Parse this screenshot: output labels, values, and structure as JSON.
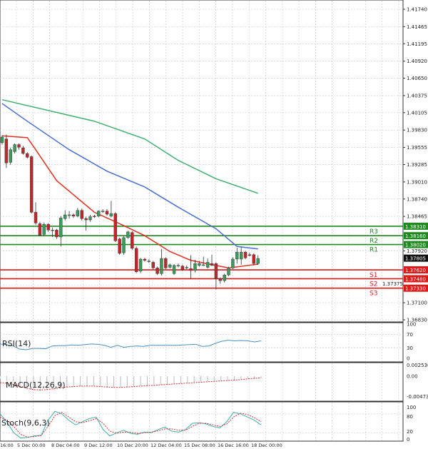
{
  "chart_data": [
    {
      "type": "candlestick",
      "pane": "price",
      "yticks": [
        "1.41740",
        "1.41465",
        "1.41195",
        "1.40920",
        "1.40650",
        "1.40375",
        "1.40105",
        "1.39830",
        "1.39555",
        "1.39285",
        "1.39010",
        "1.38740",
        "1.38465",
        "1.37920",
        "1.37375",
        "1.37100",
        "1.36830"
      ],
      "ylim": [
        1.3683,
        1.4174
      ],
      "grid": true,
      "current_price": "1.37805",
      "candles_ohlc": [
        [
          1.3963,
          1.3975,
          1.396,
          1.3972
        ],
        [
          1.3969,
          1.3976,
          1.3923,
          1.3931
        ],
        [
          1.3932,
          1.3955,
          1.3928,
          1.3952
        ],
        [
          1.3949,
          1.3962,
          1.3946,
          1.396
        ],
        [
          1.396,
          1.3962,
          1.3952,
          1.3956
        ],
        [
          1.3955,
          1.3958,
          1.3944,
          1.3946
        ],
        [
          1.3946,
          1.3948,
          1.3938,
          1.394
        ],
        [
          1.3941,
          1.3943,
          1.3851,
          1.3853
        ],
        [
          1.3853,
          1.3869,
          1.3833,
          1.3836
        ],
        [
          1.3835,
          1.3838,
          1.3815,
          1.3817
        ],
        [
          1.3818,
          1.3837,
          1.3815,
          1.3834
        ],
        [
          1.3834,
          1.3836,
          1.3822,
          1.3825
        ],
        [
          1.3825,
          1.3829,
          1.3814,
          1.3825
        ],
        [
          1.3825,
          1.3827,
          1.3811,
          1.3814
        ],
        [
          1.3814,
          1.3847,
          1.3799,
          1.3844
        ],
        [
          1.3843,
          1.3856,
          1.384,
          1.3849
        ],
        [
          1.3849,
          1.3855,
          1.3843,
          1.3849
        ],
        [
          1.3849,
          1.3851,
          1.3844,
          1.3847
        ],
        [
          1.3847,
          1.386,
          1.3845,
          1.3856
        ],
        [
          1.3856,
          1.3859,
          1.384,
          1.3843
        ],
        [
          1.3843,
          1.3846,
          1.3824,
          1.3841
        ],
        [
          1.3841,
          1.3849,
          1.3838,
          1.3846
        ],
        [
          1.3847,
          1.3849,
          1.3844,
          1.3846
        ],
        [
          1.3847,
          1.3856,
          1.3845,
          1.3855
        ],
        [
          1.3855,
          1.3858,
          1.3852,
          1.3855
        ],
        [
          1.3855,
          1.3858,
          1.3848,
          1.385
        ],
        [
          1.3847,
          1.3871,
          1.3845,
          1.3851
        ],
        [
          1.3851,
          1.3853,
          1.3806,
          1.3808
        ],
        [
          1.3811,
          1.3813,
          1.3786,
          1.3788
        ],
        [
          1.3789,
          1.3815,
          1.3786,
          1.3813
        ],
        [
          1.3813,
          1.3824,
          1.3811,
          1.3822
        ],
        [
          1.3821,
          1.3823,
          1.3794,
          1.3796
        ],
        [
          1.3796,
          1.3799,
          1.3757,
          1.3759
        ],
        [
          1.376,
          1.3781,
          1.3757,
          1.3779
        ],
        [
          1.3779,
          1.3781,
          1.3775,
          1.3777
        ],
        [
          1.3776,
          1.3779,
          1.3773,
          1.3776
        ],
        [
          1.3774,
          1.3776,
          1.3763,
          1.3765
        ],
        [
          1.3765,
          1.3767,
          1.3754,
          1.3756
        ],
        [
          1.3756,
          1.3795,
          1.3753,
          1.378
        ],
        [
          1.378,
          1.3782,
          1.3763,
          1.3765
        ],
        [
          1.3766,
          1.3772,
          1.3764,
          1.377
        ],
        [
          1.3756,
          1.3771,
          1.3754,
          1.3769
        ],
        [
          1.3769,
          1.3772,
          1.3766,
          1.3769
        ],
        [
          1.3768,
          1.377,
          1.376,
          1.3762
        ],
        [
          1.3766,
          1.3769,
          1.3763,
          1.3766
        ],
        [
          1.3764,
          1.3785,
          1.3748,
          1.3761
        ],
        [
          1.3761,
          1.3778,
          1.3758,
          1.3772
        ],
        [
          1.3769,
          1.3776,
          1.3767,
          1.3772
        ],
        [
          1.377,
          1.3783,
          1.3768,
          1.377
        ],
        [
          1.3766,
          1.378,
          1.3764,
          1.3774
        ],
        [
          1.3772,
          1.3786,
          1.3768,
          1.3769
        ],
        [
          1.3772,
          1.3774,
          1.3731,
          1.3748
        ],
        [
          1.3748,
          1.375,
          1.374,
          1.3745
        ],
        [
          1.3745,
          1.3756,
          1.3742,
          1.3754
        ],
        [
          1.3754,
          1.3767,
          1.3752,
          1.3765
        ],
        [
          1.3765,
          1.3782,
          1.3763,
          1.3779
        ],
        [
          1.3779,
          1.3797,
          1.3772,
          1.379
        ],
        [
          1.3779,
          1.3798,
          1.377,
          1.379
        ],
        [
          1.379,
          1.3792,
          1.3779,
          1.3781
        ],
        [
          1.3786,
          1.3789,
          1.3783,
          1.3785
        ],
        [
          1.3786,
          1.3788,
          1.3769,
          1.3772
        ],
        [
          1.3772,
          1.3785,
          1.377,
          1.378
        ]
      ],
      "moving_averages": [
        {
          "color": "#e03020",
          "points": [
            [
              0,
              1.3974
            ],
            [
              6,
              1.3971
            ],
            [
              8,
              1.3952
            ],
            [
              13,
              1.3903
            ],
            [
              22,
              1.3853
            ],
            [
              28,
              1.3835
            ],
            [
              34,
              1.3816
            ],
            [
              40,
              1.3791
            ],
            [
              45,
              1.3777
            ],
            [
              51,
              1.3769
            ],
            [
              54,
              1.3765
            ],
            [
              61,
              1.3771
            ]
          ]
        },
        {
          "color": "#4a6fd0",
          "points": [
            [
              0,
              1.4025
            ],
            [
              6,
              1.3997
            ],
            [
              16,
              1.3952
            ],
            [
              25,
              1.3918
            ],
            [
              34,
              1.3893
            ],
            [
              42,
              1.3861
            ],
            [
              51,
              1.3827
            ],
            [
              56,
              1.3799
            ],
            [
              61,
              1.3795
            ]
          ]
        },
        {
          "color": "#40b070",
          "points": [
            [
              0,
              1.4031
            ],
            [
              22,
              1.3997
            ],
            [
              34,
              1.3969
            ],
            [
              42,
              1.3935
            ],
            [
              51,
              1.3906
            ],
            [
              61,
              1.3883
            ]
          ]
        }
      ],
      "levels": [
        {
          "label": "R3",
          "value": "1.38310",
          "color": "#1e8a1e"
        },
        {
          "label": "R2",
          "value": "1.38160",
          "color": "#1e8a1e"
        },
        {
          "label": "R1",
          "value": "1.38020",
          "color": "#1e8a1e"
        },
        {
          "label": "S1",
          "value": "1.37620",
          "color": "#e01818"
        },
        {
          "label": "S2",
          "value": "1.37480",
          "color": "#e01818"
        },
        {
          "label": "S3",
          "value": "1.37330",
          "color": "#e01818"
        }
      ]
    },
    {
      "type": "line",
      "pane": "rsi",
      "title": "RSI(14)",
      "ylim": [
        0,
        100
      ],
      "yticks": [
        "100",
        "70",
        "30",
        "0"
      ],
      "values": [
        42,
        40,
        36,
        27,
        25,
        29,
        29,
        28,
        36,
        37,
        37,
        39,
        38,
        40,
        42,
        41,
        38,
        32,
        38,
        32,
        35,
        36,
        35,
        38,
        38,
        38,
        38,
        38,
        39,
        40,
        41,
        35,
        36,
        44,
        50,
        53,
        51,
        52,
        51,
        48,
        51
      ]
    },
    {
      "type": "bar+line",
      "pane": "macd",
      "title": "MACD(12,26,9)",
      "ylim": [
        -0.004736,
        0.002536
      ],
      "yticks": [
        "0.002536",
        "0.00",
        "-0.004736"
      ],
      "histogram": [
        -0.0006,
        -0.001,
        -0.0015,
        -0.0024,
        -0.003,
        -0.0033,
        -0.0034,
        -0.0033,
        -0.0031,
        -0.0029,
        -0.0027,
        -0.0025,
        -0.0024,
        -0.0023,
        -0.0023,
        -0.0024,
        -0.0026,
        -0.0027,
        -0.0026,
        -0.0025,
        -0.0024,
        -0.0023,
        -0.0022,
        -0.0021,
        -0.002,
        -0.0019,
        -0.0018,
        -0.0017,
        -0.0016,
        -0.0015,
        -0.0014,
        -0.0013,
        -0.0012,
        -0.0011,
        -0.0009,
        -0.0008,
        -0.0007,
        -0.0006,
        -0.0005,
        -0.0004
      ],
      "signal": [
        -0.0015,
        -0.0016,
        -0.0019,
        -0.0024,
        -0.0028,
        -0.0031,
        -0.0032,
        -0.0031,
        -0.0029,
        -0.0027,
        -0.0025,
        -0.0024,
        -0.0023,
        -0.0023,
        -0.0023,
        -0.0024,
        -0.0025,
        -0.0026,
        -0.0026,
        -0.0025,
        -0.0024,
        -0.0023,
        -0.0022,
        -0.0021,
        -0.002,
        -0.0019,
        -0.0018,
        -0.0017,
        -0.0016,
        -0.0015,
        -0.0014,
        -0.0013,
        -0.0012,
        -0.0011,
        -0.001,
        -0.0009,
        -0.0008,
        -0.0006,
        -0.0005,
        -0.0004
      ]
    },
    {
      "type": "line",
      "pane": "stoch",
      "title": "Stoch(9,6,3)",
      "ylim": [
        0,
        100
      ],
      "yticks": [
        "100",
        "80",
        "20",
        "0"
      ],
      "main": [
        80,
        55,
        20,
        3,
        5,
        10,
        12,
        60,
        88,
        80,
        60,
        45,
        55,
        65,
        70,
        30,
        10,
        20,
        28,
        18,
        15,
        22,
        20,
        30,
        38,
        25,
        22,
        30,
        50,
        52,
        48,
        40,
        35,
        55,
        85,
        80,
        70,
        60,
        45
      ],
      "signal": [
        70,
        60,
        40,
        15,
        6,
        8,
        11,
        40,
        75,
        85,
        70,
        55,
        52,
        58,
        65,
        50,
        25,
        18,
        22,
        22,
        18,
        20,
        22,
        26,
        32,
        32,
        28,
        28,
        40,
        50,
        50,
        45,
        40,
        48,
        70,
        82,
        78,
        68,
        55
      ]
    }
  ],
  "time_axis": [
    "16:00",
    "5 Dec 00:00",
    "8 Dec 04:00",
    "9 Dec 12:00",
    "10 Dec 20:00",
    "12 Dec 04:00",
    "15 Dec 08:00",
    "16 Dec 16:00",
    "18 Dec 00:00"
  ],
  "colors": {
    "bull": "#3c9a5a",
    "bear": "#c0262a",
    "rsi": "#4a90c0",
    "stoch_main": "#40b0b0",
    "stoch_signal": "#d03030",
    "grid": "#c8c8c8"
  }
}
